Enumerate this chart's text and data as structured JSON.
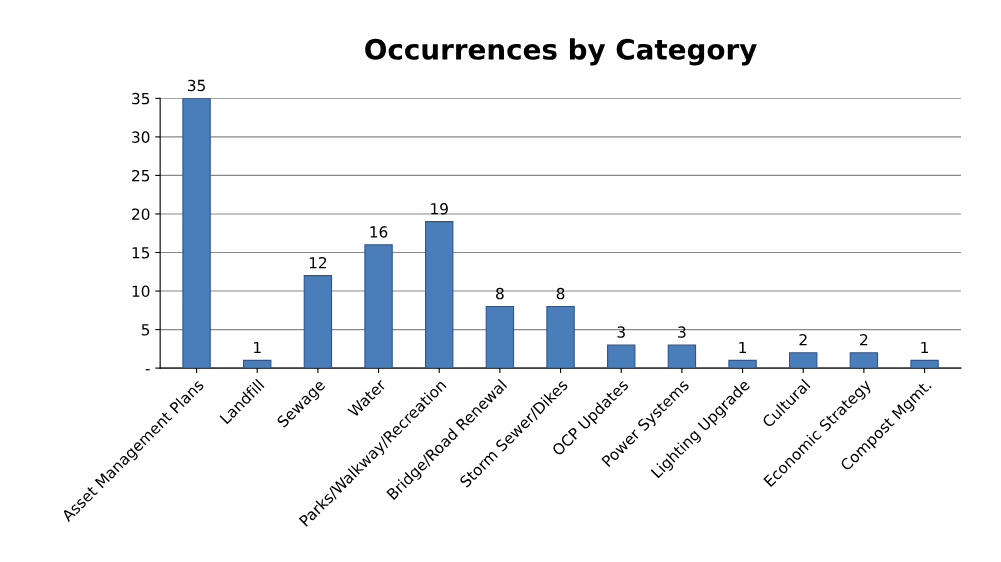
{
  "chart_data": {
    "type": "bar",
    "title": "Occurrences by Category",
    "categories": [
      "Asset Management Plans",
      "Landfill",
      "Sewage",
      "Water",
      "Parks/Walkway/Recreation",
      "Bridge/Road Renewal",
      "Storm Sewer/Dikes",
      "OCP Updates",
      "Power Systems",
      "Lighting Upgrade",
      "Cultural",
      "Economic Strategy",
      "Compost Mgmt."
    ],
    "values": [
      35,
      1,
      12,
      16,
      19,
      8,
      8,
      3,
      3,
      1,
      2,
      2,
      1
    ],
    "color": "#4a7ebb",
    "ylim": [
      0,
      35
    ],
    "yticks": [
      {
        "value": 0,
        "label": "-"
      },
      5,
      10,
      15,
      20,
      25,
      30,
      35
    ],
    "grid": "y",
    "data_labels": true
  }
}
